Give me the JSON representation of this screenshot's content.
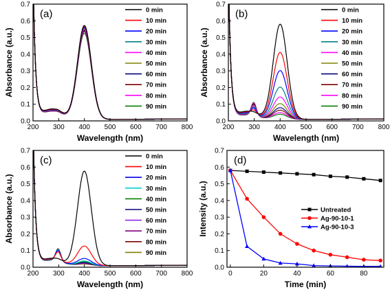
{
  "figure": {
    "x_axis_label": "Wavelength (nm)",
    "y_axis_label": "Absorbance (a.u.)"
  },
  "chart_data": [
    {
      "panel_label": "(a)",
      "type": "line",
      "xlabel": "Wavelength (nm)",
      "ylabel": "Absorbance (a.u.)",
      "xlim": [
        200,
        800
      ],
      "ylim": [
        0.0,
        0.7
      ],
      "xticks": [
        200,
        300,
        400,
        500,
        600,
        700,
        800
      ],
      "yticks": [
        "0.0",
        "0.1",
        "0.2",
        "0.3",
        "0.4",
        "0.5",
        "0.6",
        "0.7"
      ],
      "legend_position": "top-right",
      "series": [
        {
          "name": "0 min",
          "color": "#000000",
          "peak": 0.575,
          "dip": 0.065,
          "shoulder": 0.005
        },
        {
          "name": "10 min",
          "color": "#ff0000",
          "peak": 0.57,
          "dip": 0.062,
          "shoulder": 0.005
        },
        {
          "name": "20 min",
          "color": "#0000ff",
          "peak": 0.565,
          "dip": 0.06,
          "shoulder": 0.005
        },
        {
          "name": "30 min",
          "color": "#008080",
          "peak": 0.56,
          "dip": 0.058,
          "shoulder": 0.005
        },
        {
          "name": "40 min",
          "color": "#ff00ff",
          "peak": 0.555,
          "dip": 0.056,
          "shoulder": 0.005
        },
        {
          "name": "50 min",
          "color": "#808000",
          "peak": 0.55,
          "dip": 0.055,
          "shoulder": 0.005
        },
        {
          "name": "60 min",
          "color": "#000080",
          "peak": 0.545,
          "dip": 0.053,
          "shoulder": 0.005
        },
        {
          "name": "70 min",
          "color": "#800000",
          "peak": 0.54,
          "dip": 0.052,
          "shoulder": 0.005
        },
        {
          "name": "80 min",
          "color": "#ff00ff",
          "peak": 0.535,
          "dip": 0.051,
          "shoulder": 0.005
        },
        {
          "name": "90 min",
          "color": "#008000",
          "peak": 0.525,
          "dip": 0.05,
          "shoulder": 0.005
        }
      ]
    },
    {
      "panel_label": "(b)",
      "type": "line",
      "xlabel": "Wavelength (nm)",
      "ylabel": "Absorbance (a.u.)",
      "xlim": [
        200,
        800
      ],
      "ylim": [
        0.0,
        0.7
      ],
      "xticks": [
        200,
        300,
        400,
        500,
        600,
        700,
        800
      ],
      "yticks": [
        "0.0",
        "0.1",
        "0.2",
        "0.3",
        "0.4",
        "0.5",
        "0.6",
        "0.7"
      ],
      "legend_position": "top-right",
      "series": [
        {
          "name": "0 min",
          "color": "#000000",
          "peak": 0.58,
          "dip": 0.05,
          "shoulder": 0.005
        },
        {
          "name": "10 min",
          "color": "#ff0000",
          "peak": 0.41,
          "dip": 0.045,
          "shoulder": 0.02
        },
        {
          "name": "20 min",
          "color": "#0000ff",
          "peak": 0.3,
          "dip": 0.04,
          "shoulder": 0.035
        },
        {
          "name": "30 min",
          "color": "#008080",
          "peak": 0.2,
          "dip": 0.035,
          "shoulder": 0.045
        },
        {
          "name": "40 min",
          "color": "#ff00ff",
          "peak": 0.14,
          "dip": 0.032,
          "shoulder": 0.055
        },
        {
          "name": "50 min",
          "color": "#808000",
          "peak": 0.1,
          "dip": 0.03,
          "shoulder": 0.06
        },
        {
          "name": "60 min",
          "color": "#000080",
          "peak": 0.075,
          "dip": 0.028,
          "shoulder": 0.065
        },
        {
          "name": "70 min",
          "color": "#800000",
          "peak": 0.06,
          "dip": 0.027,
          "shoulder": 0.07
        },
        {
          "name": "80 min",
          "color": "#ff00ff",
          "peak": 0.045,
          "dip": 0.026,
          "shoulder": 0.075
        },
        {
          "name": "90 min",
          "color": "#008000",
          "peak": 0.035,
          "dip": 0.025,
          "shoulder": 0.08
        }
      ]
    },
    {
      "panel_label": "(c)",
      "type": "line",
      "xlabel": "Wavelength (nm)",
      "ylabel": "Absorbance (a.u.)",
      "xlim": [
        200,
        800
      ],
      "ylim": [
        0.0,
        0.7
      ],
      "xticks": [
        200,
        300,
        400,
        500,
        600,
        700,
        800
      ],
      "yticks": [
        "0.0",
        "0.1",
        "0.2",
        "0.3",
        "0.4",
        "0.5",
        "0.6",
        "0.7"
      ],
      "legend_position": "top-right",
      "series": [
        {
          "name": "0 min",
          "color": "#000000",
          "peak": 0.575,
          "dip": 0.045,
          "shoulder": 0.005
        },
        {
          "name": "10 min",
          "color": "#ff0000",
          "peak": 0.125,
          "dip": 0.04,
          "shoulder": 0.05
        },
        {
          "name": "20 min",
          "color": "#0000ff",
          "peak": 0.05,
          "dip": 0.038,
          "shoulder": 0.06
        },
        {
          "name": "30 min",
          "color": "#00ced1",
          "peak": 0.035,
          "dip": 0.036,
          "shoulder": 0.065
        },
        {
          "name": "40 min",
          "color": "#008000",
          "peak": 0.03,
          "dip": 0.035,
          "shoulder": 0.068
        },
        {
          "name": "50 min",
          "color": "#000080",
          "peak": 0.025,
          "dip": 0.034,
          "shoulder": 0.07
        },
        {
          "name": "60 min",
          "color": "#8a2be2",
          "peak": 0.022,
          "dip": 0.034,
          "shoulder": 0.07
        },
        {
          "name": "70 min",
          "color": "#800080",
          "peak": 0.02,
          "dip": 0.033,
          "shoulder": 0.072
        },
        {
          "name": "80 min",
          "color": "#800000",
          "peak": 0.018,
          "dip": 0.033,
          "shoulder": 0.073
        },
        {
          "name": "90 min",
          "color": "#808000",
          "peak": 0.016,
          "dip": 0.032,
          "shoulder": 0.074
        }
      ]
    },
    {
      "panel_label": "(d)",
      "type": "line",
      "xlabel": "Time (min)",
      "ylabel": "Intensity (a.u.)",
      "xlim": [
        -2,
        92
      ],
      "ylim": [
        0.0,
        0.7
      ],
      "xticks": [
        0,
        20,
        40,
        60,
        80
      ],
      "yticks": [
        "0.0",
        "0.1",
        "0.2",
        "0.3",
        "0.4",
        "0.5",
        "0.6",
        "0.7"
      ],
      "legend_position": "center-right",
      "x": [
        0,
        10,
        20,
        30,
        40,
        50,
        60,
        70,
        80,
        90
      ],
      "series": [
        {
          "name": "Untreated",
          "color": "#000000",
          "marker": "square",
          "values": [
            0.58,
            0.575,
            0.57,
            0.565,
            0.56,
            0.555,
            0.545,
            0.54,
            0.53,
            0.52
          ]
        },
        {
          "name": "Ag-90-10-1",
          "color": "#ff0000",
          "marker": "circle",
          "values": [
            0.58,
            0.41,
            0.3,
            0.2,
            0.14,
            0.1,
            0.075,
            0.06,
            0.045,
            0.04
          ]
        },
        {
          "name": "Ag-90-10-3",
          "color": "#0000ff",
          "marker": "triangle",
          "values": [
            0.58,
            0.125,
            0.05,
            0.025,
            0.02,
            0.01,
            0.008,
            0.006,
            0.005,
            0.005
          ]
        }
      ]
    }
  ]
}
